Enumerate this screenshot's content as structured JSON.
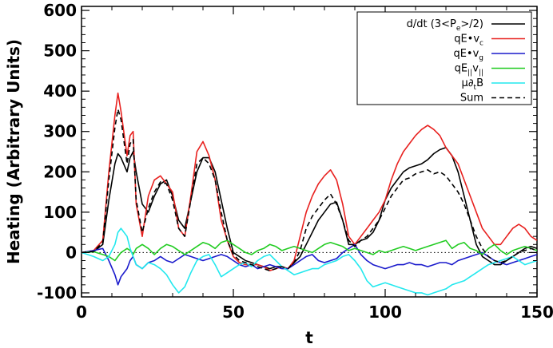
{
  "chart_data": {
    "type": "line",
    "title": "",
    "xlabel": "t",
    "ylabel": "Heating (Arbitrary Units)",
    "xlim": [
      0,
      150
    ],
    "ylim": [
      -110,
      610
    ],
    "xticks": [
      0,
      50,
      100,
      150
    ],
    "yticks": [
      -100,
      0,
      100,
      200,
      300,
      400,
      500,
      600
    ],
    "grid": false,
    "legend_position": "top-right",
    "reference_line": {
      "y": 0,
      "style": "dotted",
      "color": "#000000"
    },
    "series": [
      {
        "name": "d/dt (3<Pe>/2)",
        "legend_main": "d/dt (3<P",
        "legend_sub": "e",
        "legend_tail": ">/2)",
        "color": "#000000",
        "dash": "solid",
        "x": [
          0,
          4,
          7,
          9,
          11,
          12,
          13,
          15,
          16,
          17,
          18,
          20,
          22,
          24,
          26,
          28,
          30,
          32,
          34,
          36,
          38,
          40,
          42,
          44,
          46,
          48,
          50,
          52,
          54,
          56,
          58,
          60,
          62,
          64,
          66,
          68,
          70,
          72,
          74,
          76,
          78,
          80,
          82,
          84,
          86,
          88,
          90,
          92,
          94,
          96,
          98,
          100,
          102,
          104,
          106,
          108,
          110,
          112,
          114,
          116,
          118,
          120,
          122,
          124,
          126,
          128,
          130,
          132,
          134,
          136,
          138,
          140,
          142,
          144,
          146,
          148,
          150
        ],
        "y": [
          0,
          2,
          20,
          130,
          220,
          245,
          235,
          200,
          235,
          250,
          200,
          120,
          100,
          140,
          170,
          180,
          140,
          80,
          60,
          130,
          200,
          235,
          235,
          200,
          130,
          60,
          0,
          -10,
          -20,
          -25,
          -30,
          -35,
          -40,
          -35,
          -35,
          -40,
          -25,
          -10,
          20,
          50,
          80,
          100,
          120,
          125,
          80,
          20,
          20,
          30,
          35,
          50,
          80,
          130,
          160,
          180,
          200,
          210,
          215,
          220,
          230,
          245,
          255,
          260,
          240,
          200,
          140,
          80,
          20,
          -10,
          -20,
          -30,
          -30,
          -20,
          -10,
          0,
          10,
          15,
          10
        ]
      },
      {
        "name": "qE·vc",
        "legend_main": "qE•v",
        "legend_sub": "c",
        "legend_tail": "",
        "color": "#e8211f",
        "dash": "solid",
        "x": [
          0,
          4,
          7,
          9,
          11,
          12,
          13,
          15,
          16,
          17,
          18,
          20,
          22,
          24,
          26,
          28,
          30,
          32,
          34,
          36,
          38,
          40,
          42,
          44,
          46,
          48,
          50,
          52,
          54,
          56,
          58,
          60,
          62,
          64,
          66,
          68,
          70,
          72,
          74,
          76,
          78,
          80,
          82,
          84,
          86,
          88,
          90,
          92,
          94,
          96,
          98,
          100,
          102,
          104,
          106,
          108,
          110,
          112,
          114,
          116,
          118,
          120,
          122,
          124,
          126,
          128,
          130,
          132,
          134,
          136,
          138,
          140,
          142,
          144,
          146,
          148,
          150
        ],
        "y": [
          0,
          5,
          30,
          200,
          340,
          395,
          350,
          240,
          290,
          300,
          120,
          40,
          140,
          180,
          190,
          170,
          150,
          60,
          40,
          140,
          250,
          275,
          240,
          180,
          80,
          30,
          -10,
          -25,
          -30,
          -30,
          -30,
          -35,
          -45,
          -40,
          -35,
          -40,
          -20,
          40,
          100,
          140,
          170,
          190,
          205,
          180,
          120,
          40,
          20,
          40,
          60,
          80,
          100,
          130,
          180,
          220,
          250,
          270,
          290,
          305,
          315,
          305,
          290,
          260,
          240,
          220,
          180,
          140,
          100,
          60,
          40,
          20,
          20,
          40,
          60,
          70,
          60,
          40,
          30
        ]
      },
      {
        "name": "qE·vg",
        "legend_main": "qE•v",
        "legend_sub": "g",
        "legend_tail": "",
        "color": "#1a1acc",
        "dash": "solid",
        "x": [
          0,
          4,
          7,
          9,
          11,
          12,
          13,
          15,
          16,
          17,
          18,
          20,
          22,
          24,
          26,
          28,
          30,
          32,
          34,
          36,
          38,
          40,
          42,
          44,
          46,
          48,
          50,
          52,
          54,
          56,
          58,
          60,
          62,
          64,
          66,
          68,
          70,
          72,
          74,
          76,
          78,
          80,
          82,
          84,
          86,
          88,
          90,
          92,
          94,
          96,
          98,
          100,
          102,
          104,
          106,
          108,
          110,
          112,
          114,
          116,
          118,
          120,
          122,
          124,
          126,
          128,
          130,
          132,
          134,
          136,
          138,
          140,
          142,
          144,
          146,
          148,
          150
        ],
        "y": [
          0,
          5,
          10,
          -20,
          -55,
          -80,
          -60,
          -40,
          -20,
          -10,
          -30,
          -40,
          -25,
          -20,
          -10,
          -20,
          -25,
          -15,
          -5,
          -10,
          -15,
          -20,
          -15,
          -10,
          -5,
          -10,
          -20,
          -30,
          -35,
          -30,
          -40,
          -35,
          -30,
          -35,
          -40,
          -40,
          -30,
          -20,
          -10,
          -5,
          -20,
          -25,
          -20,
          -15,
          0,
          10,
          20,
          -5,
          -20,
          -30,
          -35,
          -40,
          -35,
          -30,
          -30,
          -25,
          -30,
          -30,
          -35,
          -30,
          -25,
          -25,
          -30,
          -20,
          -15,
          -10,
          -5,
          0,
          -10,
          -20,
          -25,
          -30,
          -25,
          -20,
          -15,
          -10,
          -5
        ]
      },
      {
        "name": "qE∥v∥",
        "legend_main": "qE",
        "legend_sub": "||",
        "legend_tail": "v",
        "legend_sub2": "||",
        "color": "#22cc22",
        "dash": "solid",
        "x": [
          0,
          4,
          7,
          9,
          11,
          12,
          13,
          15,
          16,
          17,
          18,
          20,
          22,
          24,
          26,
          28,
          30,
          32,
          34,
          36,
          38,
          40,
          42,
          44,
          46,
          48,
          50,
          52,
          54,
          56,
          58,
          60,
          62,
          64,
          66,
          68,
          70,
          72,
          74,
          76,
          78,
          80,
          82,
          84,
          86,
          88,
          90,
          92,
          94,
          96,
          98,
          100,
          102,
          104,
          106,
          108,
          110,
          112,
          114,
          116,
          118,
          120,
          122,
          124,
          126,
          128,
          130,
          132,
          134,
          136,
          138,
          140,
          142,
          144,
          146,
          148,
          150
        ],
        "y": [
          0,
          2,
          -5,
          -10,
          -20,
          -10,
          0,
          10,
          5,
          -5,
          10,
          20,
          10,
          -5,
          10,
          20,
          15,
          5,
          -5,
          5,
          15,
          25,
          20,
          10,
          25,
          30,
          20,
          10,
          0,
          -5,
          5,
          10,
          20,
          15,
          5,
          10,
          15,
          10,
          5,
          0,
          10,
          20,
          25,
          20,
          15,
          5,
          10,
          5,
          0,
          -5,
          5,
          0,
          5,
          10,
          15,
          10,
          5,
          10,
          15,
          20,
          25,
          30,
          10,
          20,
          25,
          10,
          5,
          -5,
          10,
          20,
          5,
          -5,
          5,
          10,
          15,
          10,
          5
        ]
      },
      {
        "name": "μ∂tB",
        "legend_main": "μ∂",
        "legend_sub": "t",
        "legend_tail": "B",
        "color": "#22e8ee",
        "dash": "solid",
        "x": [
          0,
          4,
          7,
          9,
          11,
          12,
          13,
          15,
          16,
          17,
          18,
          20,
          22,
          24,
          26,
          28,
          30,
          32,
          34,
          36,
          38,
          40,
          42,
          44,
          46,
          48,
          50,
          52,
          54,
          56,
          58,
          60,
          62,
          64,
          66,
          68,
          70,
          72,
          74,
          76,
          78,
          80,
          82,
          84,
          86,
          88,
          90,
          92,
          94,
          96,
          98,
          100,
          102,
          104,
          106,
          108,
          110,
          112,
          114,
          116,
          118,
          120,
          122,
          124,
          126,
          128,
          130,
          132,
          134,
          136,
          138,
          140,
          142,
          144,
          146,
          148,
          150
        ],
        "y": [
          0,
          -10,
          -20,
          -10,
          20,
          50,
          60,
          40,
          10,
          -10,
          -30,
          -40,
          -25,
          -30,
          -40,
          -55,
          -80,
          -100,
          -85,
          -50,
          -20,
          -10,
          -5,
          -30,
          -60,
          -50,
          -40,
          -30,
          -25,
          -35,
          -20,
          -10,
          -5,
          -20,
          -35,
          -45,
          -55,
          -50,
          -45,
          -40,
          -40,
          -30,
          -25,
          -20,
          -10,
          -5,
          -20,
          -40,
          -70,
          -85,
          -80,
          -75,
          -80,
          -85,
          -90,
          -95,
          -100,
          -100,
          -105,
          -100,
          -95,
          -90,
          -80,
          -75,
          -70,
          -60,
          -50,
          -40,
          -30,
          -25,
          -20,
          -15,
          -10,
          -20,
          -30,
          -25,
          -20
        ]
      },
      {
        "name": "Sum",
        "legend_main": "Sum",
        "legend_sub": "",
        "legend_tail": "",
        "color": "#000000",
        "dash": "dashed",
        "x": [
          0,
          4,
          7,
          9,
          11,
          12,
          13,
          15,
          16,
          17,
          18,
          20,
          22,
          24,
          26,
          28,
          30,
          32,
          34,
          36,
          38,
          40,
          42,
          44,
          46,
          48,
          50,
          52,
          54,
          56,
          58,
          60,
          62,
          64,
          66,
          68,
          70,
          72,
          74,
          76,
          78,
          80,
          82,
          84,
          86,
          88,
          90,
          92,
          94,
          96,
          98,
          100,
          102,
          104,
          106,
          108,
          110,
          112,
          114,
          116,
          118,
          120,
          122,
          124,
          126,
          128,
          130,
          132,
          134,
          136,
          138,
          140,
          142,
          144,
          146,
          148,
          150
        ],
        "y": [
          0,
          3,
          25,
          180,
          310,
          355,
          330,
          220,
          270,
          280,
          130,
          50,
          110,
          150,
          175,
          170,
          130,
          60,
          40,
          130,
          220,
          235,
          220,
          180,
          100,
          30,
          -5,
          -20,
          -25,
          -30,
          -35,
          -40,
          -45,
          -40,
          -35,
          -40,
          -25,
          5,
          60,
          90,
          110,
          130,
          145,
          120,
          80,
          30,
          15,
          30,
          40,
          60,
          80,
          110,
          140,
          160,
          180,
          185,
          195,
          200,
          205,
          195,
          200,
          190,
          170,
          150,
          120,
          80,
          40,
          10,
          -10,
          -20,
          -25,
          -20,
          -10,
          0,
          5,
          10,
          5
        ]
      }
    ]
  }
}
